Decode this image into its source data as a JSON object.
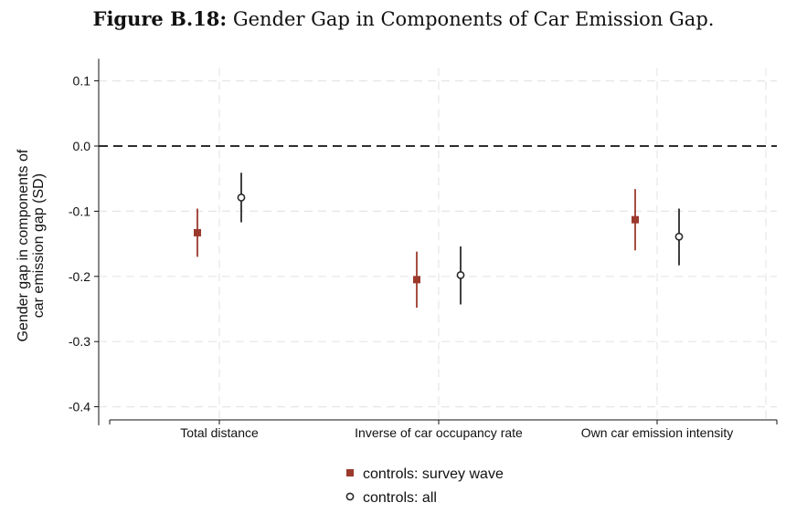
{
  "title": {
    "lead": "Figure B.18:",
    "text": "Gender Gap in Components of Car Emission Gap."
  },
  "colors": {
    "survey": "#9b3a2c",
    "all": "#2a2a2a",
    "grid": "#e6e6e6",
    "zero": "#111111"
  },
  "chart_data": {
    "type": "scatter",
    "title": "Gender Gap in Components of Car Emission Gap.",
    "xlabel": "",
    "ylabel_lines": [
      "Gender gap in components of",
      "car emission gap (SD)"
    ],
    "ylim": [
      -0.42,
      0.12
    ],
    "yticks": [
      0.1,
      0.0,
      -0.1,
      -0.2,
      -0.3,
      -0.4
    ],
    "ytick_labels": [
      "0.1",
      "0.0",
      "-0.1",
      "-0.2",
      "-0.3",
      "-0.4"
    ],
    "reference_line": 0.0,
    "categories": [
      "Total distance",
      "Inverse of car occupancy rate",
      "Own car emission intensity"
    ],
    "series": [
      {
        "name": "controls: survey wave",
        "marker": "square",
        "values": [
          -0.133,
          -0.205,
          -0.113
        ],
        "ci_low": [
          -0.17,
          -0.248,
          -0.16
        ],
        "ci_high": [
          -0.096,
          -0.162,
          -0.066
        ]
      },
      {
        "name": "controls: all",
        "marker": "hollow-circle",
        "values": [
          -0.079,
          -0.198,
          -0.139
        ],
        "ci_low": [
          -0.117,
          -0.243,
          -0.183
        ],
        "ci_high": [
          -0.041,
          -0.154,
          -0.096
        ]
      }
    ],
    "legend": [
      "controls: survey wave",
      "controls: all"
    ],
    "legend_position": "bottom"
  }
}
